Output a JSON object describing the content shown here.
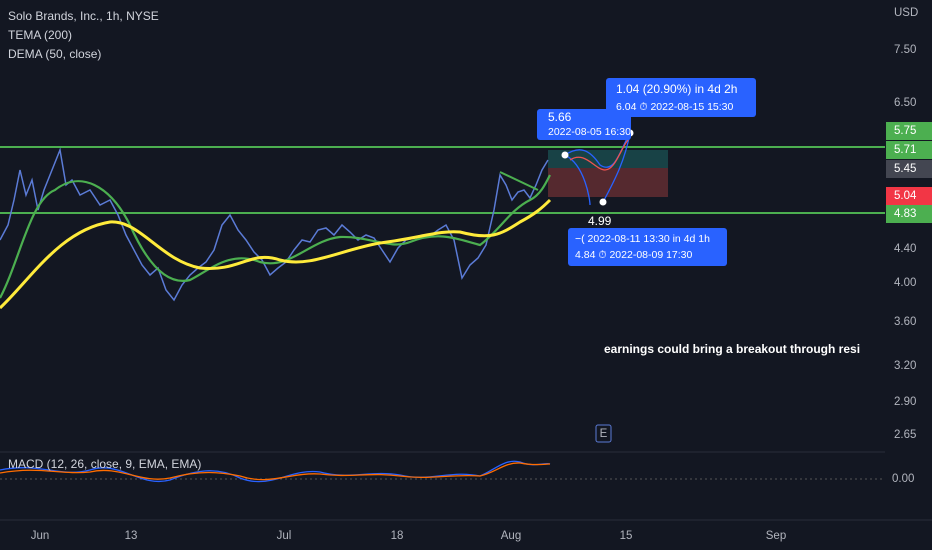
{
  "header": {
    "symbol": "Solo Brands, Inc., 1h, NYSE",
    "indicators": [
      "TEMA (200)",
      "DEMA (50, close)"
    ]
  },
  "price_axis": {
    "currency": "USD",
    "labels": [
      "7.50",
      "6.50",
      "4.40",
      "4.00",
      "3.60",
      "3.20",
      "2.90",
      "2.65"
    ]
  },
  "price_tags": [
    "5.75",
    "5.71",
    "5.45",
    "5.04",
    "4.83"
  ],
  "time_axis": [
    "Jun",
    "13",
    "Jul",
    "18",
    "Aug",
    "15",
    "Sep"
  ],
  "annotations": {
    "point_a": {
      "price": "5.66",
      "time": "2022-08-05 16:30"
    },
    "point_b": {
      "change": "1.04 (20.90%) in 4d 2h",
      "detail": "6.04 ⏱ 2022-08-15  15:30"
    },
    "point_c": {
      "price": "4.99",
      "change": "−( 2022-08-11 13:30  in 4d 1h",
      "detail": "4.84 ⏱ 2022-08-09  17:30"
    },
    "note": "earnings could bring a breakout through resi",
    "event": "E"
  },
  "macd": {
    "label": "MACD (12, 26, close, 9, EMA, EMA)",
    "zero": "0.00"
  }
}
